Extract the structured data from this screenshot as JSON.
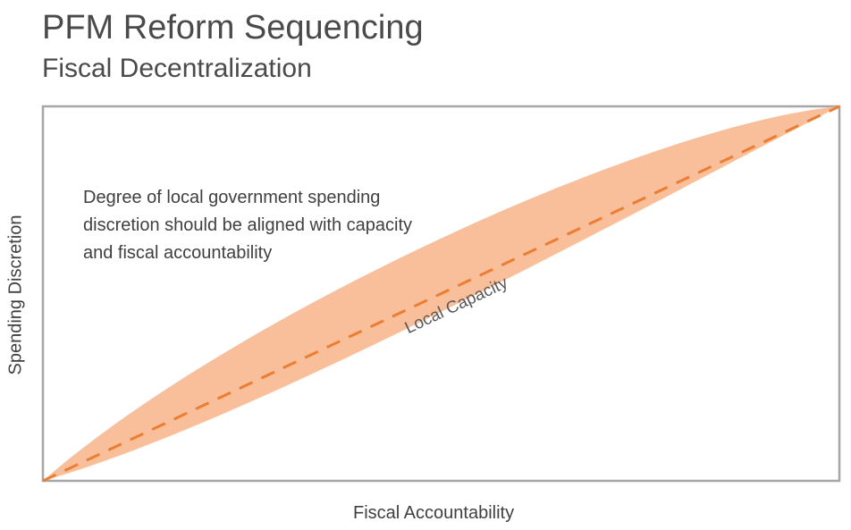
{
  "header": {
    "title": "PFM Reform Sequencing",
    "subtitle": "Fiscal Decentralization"
  },
  "diagram": {
    "note": "Degree of local government spending discretion should be aligned with capacity and fiscal accountability",
    "band_label": "Local Capacity",
    "x_axis_label": "Fiscal Accountability",
    "y_axis_label": "Spending Discretion",
    "colors": {
      "band_fill": "#f9bf9a",
      "dashed_line": "#ed7d31",
      "frame": "#a6a6a6"
    }
  }
}
